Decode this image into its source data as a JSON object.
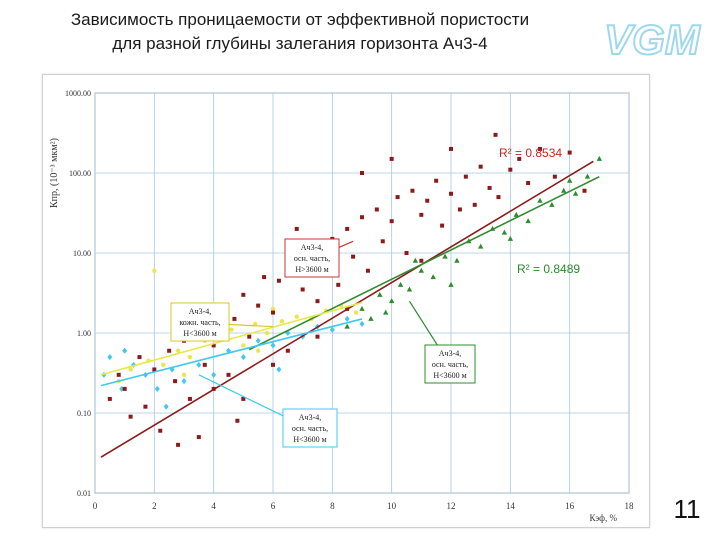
{
  "slide": {
    "title_line1": "Зависимость проницаемости от эффективной пористости",
    "title_line2": "для разной глубины залегания горизонта Ач3-4",
    "logo_text": "VGM",
    "page_number": "11"
  },
  "colors": {
    "deep_series": "#8b1a1a",
    "green_series": "#2e8b2e",
    "yellow_series": "#e8e84a",
    "cyan_series": "#40c8f0",
    "grid": "#a8c8e0",
    "callout_border": "#cc3333",
    "logo": "#9fd8ec"
  },
  "chart_data": {
    "type": "scatter",
    "title": "",
    "xlabel": "Кэф, %",
    "ylabel": "Кпр, (10⁻³ мкм²)",
    "xlim": [
      0,
      18
    ],
    "ylim": [
      0.01,
      1000
    ],
    "y_scale": "log",
    "grid": true,
    "x_ticks": [
      "0",
      "2",
      "4",
      "6",
      "8",
      "10",
      "12",
      "14",
      "16",
      "18"
    ],
    "y_ticks": [
      "0.01",
      "0.10",
      "1.00",
      "10.00",
      "100.00",
      "1000.00"
    ],
    "series": [
      {
        "name": "Ач3-4, осн. часть, Н>3600 м",
        "color": "#8b1a1a",
        "marker": "square",
        "points": [
          [
            0.5,
            0.15
          ],
          [
            0.8,
            0.3
          ],
          [
            1.0,
            0.2
          ],
          [
            1.2,
            0.09
          ],
          [
            1.5,
            0.5
          ],
          [
            1.7,
            0.12
          ],
          [
            2.0,
            0.35
          ],
          [
            2.2,
            0.06
          ],
          [
            2.5,
            0.6
          ],
          [
            2.7,
            0.25
          ],
          [
            3.0,
            0.8
          ],
          [
            3.2,
            0.15
          ],
          [
            3.5,
            1.2
          ],
          [
            3.7,
            0.4
          ],
          [
            4.0,
            0.7
          ],
          [
            4.2,
            2.0
          ],
          [
            4.5,
            0.3
          ],
          [
            4.7,
            1.5
          ],
          [
            5.0,
            3.0
          ],
          [
            5.2,
            0.9
          ],
          [
            5.5,
            2.2
          ],
          [
            5.7,
            5.0
          ],
          [
            6.0,
            1.8
          ],
          [
            6.2,
            4.5
          ],
          [
            6.5,
            0.6
          ],
          [
            6.7,
            8.0
          ],
          [
            7.0,
            3.5
          ],
          [
            7.2,
            12.0
          ],
          [
            7.5,
            2.5
          ],
          [
            7.7,
            6.0
          ],
          [
            8.0,
            15.0
          ],
          [
            8.2,
            4.0
          ],
          [
            8.5,
            20.0
          ],
          [
            8.7,
            9.0
          ],
          [
            9.0,
            28.0
          ],
          [
            9.2,
            6.0
          ],
          [
            9.5,
            35.0
          ],
          [
            9.7,
            14.0
          ],
          [
            10.0,
            25.0
          ],
          [
            10.2,
            50.0
          ],
          [
            10.5,
            10.0
          ],
          [
            10.7,
            60.0
          ],
          [
            11.0,
            30.0
          ],
          [
            11.2,
            45.0
          ],
          [
            11.5,
            80.0
          ],
          [
            11.7,
            22.0
          ],
          [
            12.0,
            55.0
          ],
          [
            12.3,
            35.0
          ],
          [
            12.5,
            90.0
          ],
          [
            12.8,
            40.0
          ],
          [
            13.0,
            120.0
          ],
          [
            13.3,
            65.0
          ],
          [
            13.6,
            50.0
          ],
          [
            14.0,
            110.0
          ],
          [
            14.3,
            150.0
          ],
          [
            14.6,
            75.0
          ],
          [
            15.0,
            200.0
          ],
          [
            15.5,
            90.0
          ],
          [
            16.0,
            180.0
          ],
          [
            16.5,
            60.0
          ],
          [
            5.0,
            0.15
          ],
          [
            6.0,
            0.4
          ],
          [
            3.5,
            0.05
          ],
          [
            4.8,
            0.08
          ],
          [
            7.5,
            0.9
          ],
          [
            2.8,
            0.04
          ],
          [
            11.0,
            8.0
          ],
          [
            12.0,
            200.0
          ],
          [
            10.0,
            150.0
          ],
          [
            13.5,
            300.0
          ],
          [
            9.0,
            100.0
          ],
          [
            4.0,
            0.2
          ],
          [
            6.8,
            20.0
          ],
          [
            8.5,
            2.0
          ]
        ]
      },
      {
        "name": "Ач3-4, осн. часть, Н<3600 м",
        "color": "#2e8b2e",
        "marker": "triangle",
        "points": [
          [
            8.5,
            1.2
          ],
          [
            9.0,
            2.0
          ],
          [
            9.3,
            1.5
          ],
          [
            9.6,
            3.0
          ],
          [
            10.0,
            2.5
          ],
          [
            10.3,
            4.0
          ],
          [
            10.6,
            3.5
          ],
          [
            11.0,
            6.0
          ],
          [
            11.4,
            5.0
          ],
          [
            11.8,
            9.0
          ],
          [
            12.2,
            8.0
          ],
          [
            12.6,
            14.0
          ],
          [
            13.0,
            12.0
          ],
          [
            13.4,
            20.0
          ],
          [
            13.8,
            18.0
          ],
          [
            14.2,
            30.0
          ],
          [
            14.6,
            25.0
          ],
          [
            15.0,
            45.0
          ],
          [
            15.4,
            40.0
          ],
          [
            15.8,
            60.0
          ],
          [
            16.2,
            55.0
          ],
          [
            16.6,
            90.0
          ],
          [
            17.0,
            150.0
          ],
          [
            10.8,
            8.0
          ],
          [
            12.0,
            4.0
          ],
          [
            9.8,
            1.8
          ],
          [
            14.0,
            15.0
          ],
          [
            16.0,
            80.0
          ]
        ]
      },
      {
        "name": "Ач3-4, кожн. часть, Н<3600 м",
        "color": "#e8e84a",
        "marker": "circle",
        "points": [
          [
            0.8,
            0.25
          ],
          [
            1.2,
            0.35
          ],
          [
            1.8,
            0.45
          ],
          [
            2.3,
            0.4
          ],
          [
            2.8,
            0.6
          ],
          [
            3.2,
            0.5
          ],
          [
            3.7,
            0.8
          ],
          [
            4.2,
            0.9
          ],
          [
            4.6,
            1.1
          ],
          [
            5.0,
            0.7
          ],
          [
            5.4,
            1.3
          ],
          [
            5.8,
            1.0
          ],
          [
            6.3,
            1.4
          ],
          [
            6.8,
            1.6
          ],
          [
            7.3,
            1.5
          ],
          [
            7.8,
            1.9
          ],
          [
            8.3,
            2.2
          ],
          [
            8.8,
            1.8
          ],
          [
            3.0,
            0.3
          ],
          [
            2.0,
            6.0
          ],
          [
            5.5,
            0.6
          ],
          [
            6.0,
            2.0
          ]
        ]
      },
      {
        "name": "Ач3-4, осн. часть, Н<3600 м (2)",
        "color": "#40c8f0",
        "marker": "diamond",
        "points": [
          [
            0.3,
            0.3
          ],
          [
            0.5,
            0.5
          ],
          [
            0.9,
            0.2
          ],
          [
            1.3,
            0.4
          ],
          [
            1.7,
            0.3
          ],
          [
            2.1,
            0.2
          ],
          [
            2.6,
            0.35
          ],
          [
            3.0,
            0.25
          ],
          [
            3.5,
            0.4
          ],
          [
            4.0,
            0.3
          ],
          [
            4.5,
            0.6
          ],
          [
            5.0,
            0.5
          ],
          [
            5.5,
            0.8
          ],
          [
            6.0,
            0.7
          ],
          [
            6.5,
            1.0
          ],
          [
            7.0,
            0.9
          ],
          [
            7.5,
            1.2
          ],
          [
            8.0,
            1.1
          ],
          [
            8.5,
            1.5
          ],
          [
            9.0,
            1.3
          ],
          [
            1.0,
            0.6
          ],
          [
            2.4,
            0.12
          ],
          [
            6.2,
            0.35
          ]
        ]
      }
    ],
    "trendlines": [
      {
        "series": "deep",
        "color": "#8b1a1a",
        "from": [
          0.2,
          0.028
        ],
        "to": [
          16.8,
          140.0
        ]
      },
      {
        "series": "green",
        "color": "#2e8b2e",
        "from": [
          5.2,
          0.62
        ],
        "to": [
          17.0,
          90.0
        ]
      },
      {
        "series": "yellow",
        "color": "#e8e84a",
        "from": [
          0.2,
          0.3
        ],
        "to": [
          9.0,
          2.4
        ]
      },
      {
        "series": "cyan",
        "color": "#40c8f0",
        "from": [
          0.2,
          0.22
        ],
        "to": [
          9.0,
          1.5
        ]
      }
    ],
    "annotations": {
      "r2_deep": "R² = 0.8534",
      "r2_green": "R² = 0.8489",
      "callout_deep": {
        "line1": "Ач3-4,",
        "line2": "осн. часть,",
        "line3": "Н>3600 м"
      },
      "callout_yellow": {
        "line1": "Ач3-4,",
        "line2": "кожн. часть,",
        "line3": "Н<3600 м"
      },
      "callout_green": {
        "line1": "Ач3-4,",
        "line2": "осн. часть,",
        "line3": "Н<3600 м"
      },
      "callout_cyan": {
        "line1": "Ач3-4,",
        "line2": "осн. часть,",
        "line3": "Н<3600 м"
      }
    }
  }
}
